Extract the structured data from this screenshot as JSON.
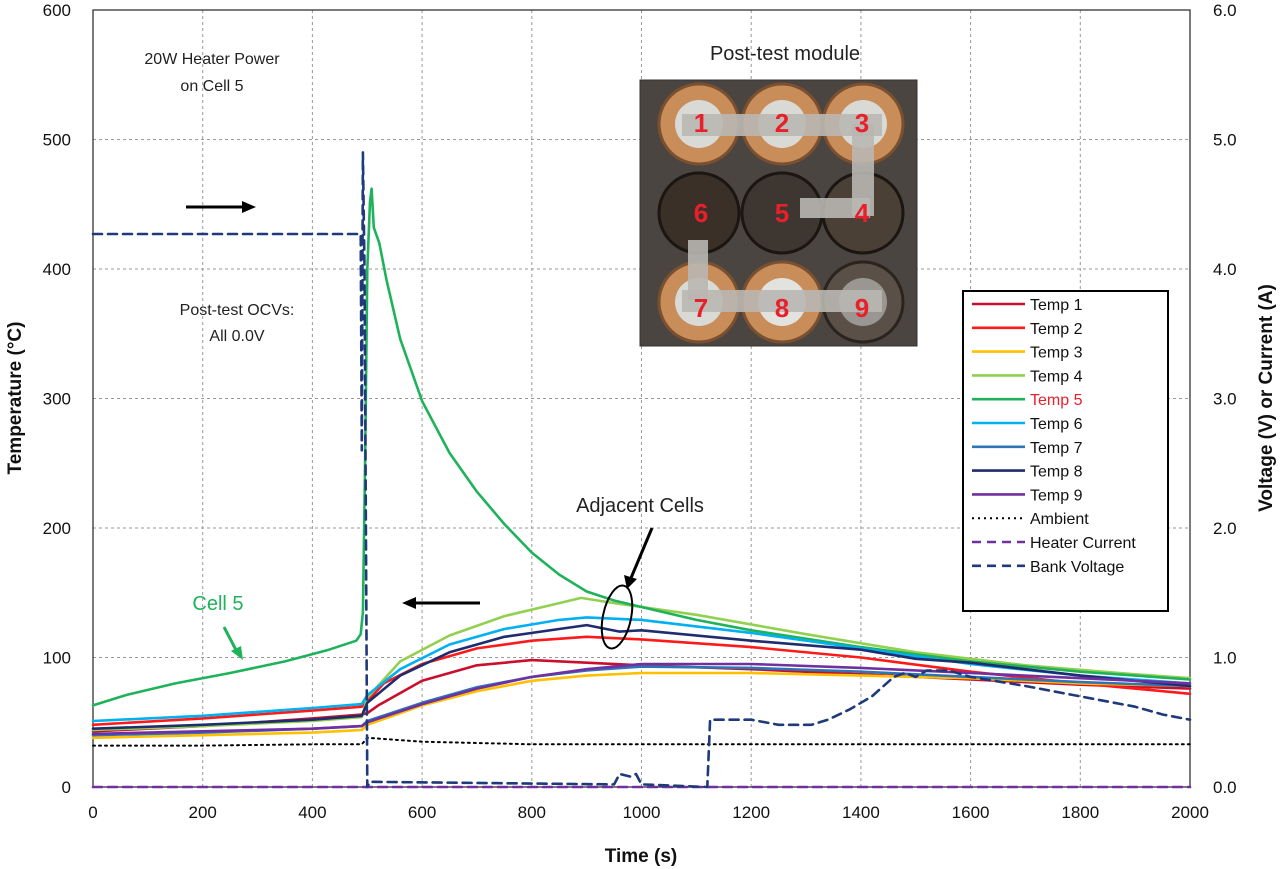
{
  "chart_data": {
    "type": "line",
    "xlabel": "Time (s)",
    "ylabel": "Temperature (°C)",
    "y2label": "Voltage (V) or Current (A)",
    "xlim": [
      0,
      2000
    ],
    "ylim": [
      0,
      600
    ],
    "y2lim": [
      0.0,
      6.0
    ],
    "xticks": [
      "0",
      "200",
      "400",
      "600",
      "800",
      "1000",
      "1200",
      "1400",
      "1600",
      "1800",
      "2000"
    ],
    "yticks": [
      "0",
      "100",
      "200",
      "300",
      "400",
      "500",
      "600"
    ],
    "y2ticks": [
      "0.0",
      "1.0",
      "2.0",
      "3.0",
      "4.0",
      "5.0",
      "6.0"
    ],
    "grid": true,
    "legend_position": "right",
    "series": [
      {
        "name": "Temp 1",
        "color": "#c8102e",
        "dash": "solid",
        "axis": "left",
        "points": [
          [
            0,
            43
          ],
          [
            200,
            47
          ],
          [
            400,
            53
          ],
          [
            490,
            56
          ],
          [
            500,
            57
          ],
          [
            520,
            63
          ],
          [
            600,
            82
          ],
          [
            700,
            94
          ],
          [
            800,
            98
          ],
          [
            900,
            96
          ],
          [
            1000,
            94
          ],
          [
            1200,
            91
          ],
          [
            1400,
            87
          ],
          [
            1600,
            83
          ],
          [
            1800,
            79
          ],
          [
            2000,
            76
          ]
        ]
      },
      {
        "name": "Temp 2",
        "color": "#ff1a1a",
        "dash": "solid",
        "axis": "left",
        "points": [
          [
            0,
            48
          ],
          [
            200,
            53
          ],
          [
            400,
            59
          ],
          [
            490,
            62
          ],
          [
            500,
            66
          ],
          [
            530,
            80
          ],
          [
            600,
            95
          ],
          [
            700,
            107
          ],
          [
            800,
            113
          ],
          [
            900,
            116
          ],
          [
            1000,
            114
          ],
          [
            1200,
            108
          ],
          [
            1400,
            100
          ],
          [
            1600,
            89
          ],
          [
            1800,
            80
          ],
          [
            2000,
            72
          ]
        ]
      },
      {
        "name": "Temp 3",
        "color": "#ffc000",
        "dash": "solid",
        "axis": "left",
        "points": [
          [
            0,
            38
          ],
          [
            200,
            40
          ],
          [
            400,
            42
          ],
          [
            490,
            44
          ],
          [
            500,
            48
          ],
          [
            600,
            63
          ],
          [
            700,
            74
          ],
          [
            800,
            82
          ],
          [
            900,
            86
          ],
          [
            1000,
            88
          ],
          [
            1200,
            88
          ],
          [
            1400,
            86
          ],
          [
            1600,
            84
          ],
          [
            1800,
            80
          ],
          [
            2000,
            78
          ]
        ]
      },
      {
        "name": "Temp 4",
        "color": "#92d050",
        "dash": "solid",
        "axis": "left",
        "points": [
          [
            0,
            44
          ],
          [
            200,
            47
          ],
          [
            400,
            51
          ],
          [
            490,
            54
          ],
          [
            500,
            69
          ],
          [
            560,
            97
          ],
          [
            650,
            117
          ],
          [
            750,
            132
          ],
          [
            850,
            142
          ],
          [
            890,
            146
          ],
          [
            950,
            142
          ],
          [
            1100,
            133
          ],
          [
            1300,
            118
          ],
          [
            1500,
            104
          ],
          [
            1700,
            94
          ],
          [
            1900,
            87
          ],
          [
            2000,
            84
          ]
        ]
      },
      {
        "name": "Temp 5",
        "color": "#1fb25a",
        "dash": "solid",
        "axis": "left",
        "points": [
          [
            0,
            63
          ],
          [
            60,
            71
          ],
          [
            150,
            80
          ],
          [
            250,
            88
          ],
          [
            350,
            97
          ],
          [
            430,
            106
          ],
          [
            480,
            113
          ],
          [
            488,
            118
          ],
          [
            492,
            135
          ],
          [
            496,
            250
          ],
          [
            500,
            400
          ],
          [
            505,
            452
          ],
          [
            508,
            462
          ],
          [
            512,
            432
          ],
          [
            522,
            420
          ],
          [
            535,
            392
          ],
          [
            560,
            346
          ],
          [
            600,
            298
          ],
          [
            650,
            258
          ],
          [
            700,
            228
          ],
          [
            750,
            203
          ],
          [
            800,
            181
          ],
          [
            850,
            164
          ],
          [
            900,
            151
          ],
          [
            950,
            144
          ],
          [
            1000,
            139
          ],
          [
            1100,
            129
          ],
          [
            1200,
            121
          ],
          [
            1400,
            108
          ],
          [
            1600,
            97
          ],
          [
            1800,
            89
          ],
          [
            2000,
            83
          ]
        ]
      },
      {
        "name": "Temp 6",
        "color": "#00b0f0",
        "dash": "solid",
        "axis": "left",
        "points": [
          [
            0,
            51
          ],
          [
            200,
            55
          ],
          [
            400,
            61
          ],
          [
            490,
            64
          ],
          [
            500,
            71
          ],
          [
            560,
            91
          ],
          [
            650,
            110
          ],
          [
            750,
            122
          ],
          [
            850,
            129
          ],
          [
            900,
            131
          ],
          [
            1000,
            129
          ],
          [
            1200,
            119
          ],
          [
            1400,
            107
          ],
          [
            1600,
            95
          ],
          [
            1800,
            86
          ],
          [
            2000,
            80
          ]
        ]
      },
      {
        "name": "Temp 7",
        "color": "#2e75b6",
        "dash": "solid",
        "axis": "left",
        "points": [
          [
            0,
            40
          ],
          [
            200,
            42
          ],
          [
            400,
            45
          ],
          [
            490,
            47
          ],
          [
            500,
            51
          ],
          [
            600,
            65
          ],
          [
            700,
            77
          ],
          [
            800,
            85
          ],
          [
            900,
            90
          ],
          [
            1000,
            93
          ],
          [
            1200,
            92
          ],
          [
            1400,
            89
          ],
          [
            1600,
            85
          ],
          [
            1800,
            81
          ],
          [
            2000,
            78
          ]
        ]
      },
      {
        "name": "Temp 8",
        "color": "#1f2c6e",
        "dash": "solid",
        "axis": "left",
        "points": [
          [
            0,
            45
          ],
          [
            200,
            48
          ],
          [
            400,
            52
          ],
          [
            490,
            55
          ],
          [
            500,
            65
          ],
          [
            560,
            86
          ],
          [
            650,
            104
          ],
          [
            750,
            116
          ],
          [
            850,
            122
          ],
          [
            900,
            125
          ],
          [
            960,
            120
          ],
          [
            1000,
            121
          ],
          [
            1200,
            113
          ],
          [
            1400,
            106
          ],
          [
            1500,
            99
          ],
          [
            1600,
            96
          ],
          [
            1800,
            86
          ],
          [
            2000,
            78
          ]
        ]
      },
      {
        "name": "Temp 9",
        "color": "#7030a0",
        "dash": "solid",
        "axis": "left",
        "points": [
          [
            0,
            41
          ],
          [
            200,
            43
          ],
          [
            400,
            45
          ],
          [
            490,
            47
          ],
          [
            500,
            50
          ],
          [
            600,
            64
          ],
          [
            700,
            76
          ],
          [
            800,
            85
          ],
          [
            900,
            91
          ],
          [
            1000,
            95
          ],
          [
            1200,
            95
          ],
          [
            1400,
            92
          ],
          [
            1600,
            88
          ],
          [
            1800,
            84
          ],
          [
            2000,
            80
          ]
        ]
      },
      {
        "name": "Ambient",
        "color": "#000000",
        "dash": "dotted",
        "axis": "left",
        "points": [
          [
            0,
            32
          ],
          [
            200,
            32
          ],
          [
            400,
            33
          ],
          [
            490,
            33
          ],
          [
            500,
            38
          ],
          [
            600,
            35
          ],
          [
            800,
            33
          ],
          [
            1000,
            33
          ],
          [
            1500,
            33
          ],
          [
            2000,
            33
          ]
        ]
      },
      {
        "name": "Heater Current",
        "color": "#7030a0",
        "dash": "dashed",
        "axis": "right",
        "points": [
          [
            0,
            0.0
          ],
          [
            2000,
            0.0
          ]
        ]
      },
      {
        "name": "Bank Voltage",
        "color": "#1f3a7a",
        "dash": "dashed",
        "axis": "right",
        "points": [
          [
            0,
            4.27
          ],
          [
            488,
            4.27
          ],
          [
            490,
            2.6
          ],
          [
            492,
            4.9
          ],
          [
            495,
            4.0
          ],
          [
            500,
            0.0
          ],
          [
            505,
            0.04
          ],
          [
            950,
            0.02
          ],
          [
            960,
            0.1
          ],
          [
            980,
            0.08
          ],
          [
            990,
            0.1
          ],
          [
            1000,
            0.02
          ],
          [
            1120,
            0.0
          ],
          [
            1125,
            0.52
          ],
          [
            1200,
            0.52
          ],
          [
            1250,
            0.48
          ],
          [
            1310,
            0.48
          ],
          [
            1340,
            0.52
          ],
          [
            1380,
            0.6
          ],
          [
            1420,
            0.7
          ],
          [
            1460,
            0.85
          ],
          [
            1480,
            0.88
          ],
          [
            1500,
            0.85
          ],
          [
            1520,
            0.9
          ],
          [
            1560,
            0.9
          ],
          [
            1600,
            0.85
          ],
          [
            1700,
            0.78
          ],
          [
            1800,
            0.7
          ],
          [
            1900,
            0.62
          ],
          [
            1950,
            0.56
          ],
          [
            2000,
            0.52
          ]
        ]
      }
    ],
    "annotations": {
      "heater_note_line1": "20W Heater Power",
      "heater_note_line2": "on Cell 5",
      "ocv_note_line1": "Post-test OCVs:",
      "ocv_note_line2": "All 0.0V",
      "adjacent_label": "Adjacent Cells",
      "cell5_label": "Cell 5",
      "photo_title": "Post-test module",
      "cell_numbers": [
        "1",
        "2",
        "3",
        "6",
        "5",
        "4",
        "7",
        "8",
        "9"
      ]
    }
  }
}
